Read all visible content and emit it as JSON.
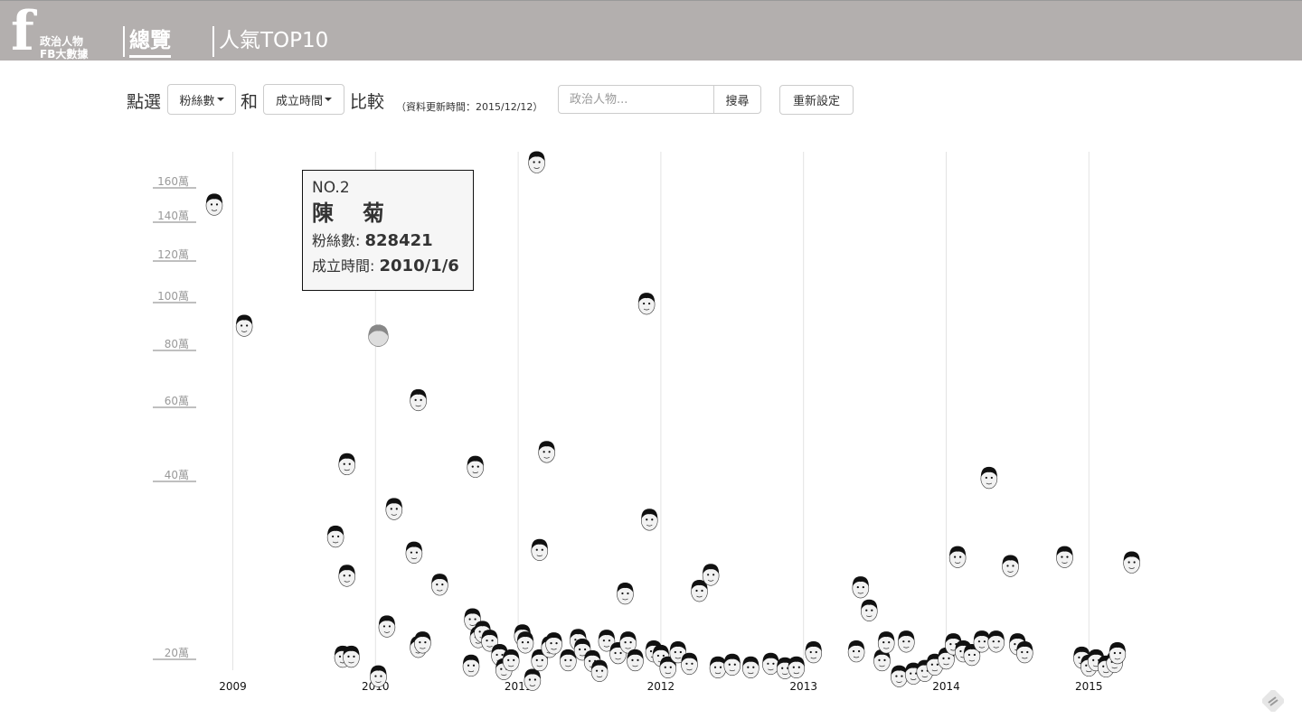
{
  "header": {
    "logo_letter": "f",
    "logo_line1": "政治人物",
    "logo_line2": "FB大數據",
    "nav": [
      {
        "label": "總覽",
        "active": true
      },
      {
        "label": "人氣TOP10",
        "active": false
      }
    ]
  },
  "controls": {
    "prefix": "點選",
    "metric_select": "粉絲數",
    "connector": "和",
    "time_select": "成立時間",
    "suffix": "比較",
    "update_note": "（資料更新時間：2015/12/12）",
    "search_placeholder": "政治人物...",
    "search_button": "搜尋",
    "reset_button": "重新設定"
  },
  "tooltip": {
    "rank": "NO.2",
    "name": "陳　菊",
    "fans_label": "粉絲數:",
    "fans_value": "828421",
    "date_label": "成立時間:",
    "date_value": "2010/1/6"
  },
  "chart_data": {
    "type": "scatter",
    "xlabel": "",
    "ylabel": "",
    "x_ticks": [
      "2009",
      "2010",
      "2011",
      "2012",
      "2013",
      "2014",
      "2015"
    ],
    "y_ticks": [
      "20萬",
      "40萬",
      "60萬",
      "80萬",
      "100萬",
      "120萬",
      "140萬",
      "160萬"
    ],
    "x_range": [
      2008.6,
      2015.5
    ],
    "grid": "vertical",
    "highlighted_point": {
      "x": 2010.02,
      "y": 828421
    },
    "points": [
      [
        2008.87,
        1456000
      ],
      [
        2009.08,
        870000
      ],
      [
        2009.72,
        329000
      ],
      [
        2009.8,
        425000
      ],
      [
        2009.8,
        285000
      ],
      [
        2009.77,
        194000
      ],
      [
        2009.83,
        194000
      ],
      [
        2010.02,
        172000
      ],
      [
        2010.02,
        828421
      ],
      [
        2010.08,
        228000
      ],
      [
        2010.13,
        360000
      ],
      [
        2010.27,
        311000
      ],
      [
        2010.3,
        598000
      ],
      [
        2010.3,
        205000
      ],
      [
        2010.33,
        210000
      ],
      [
        2010.45,
        275000
      ],
      [
        2010.68,
        236000
      ],
      [
        2010.7,
        418000
      ],
      [
        2010.72,
        216000
      ],
      [
        2010.75,
        222000
      ],
      [
        2010.67,
        184000
      ],
      [
        2010.8,
        212000
      ],
      [
        2010.87,
        196000
      ],
      [
        2010.9,
        180000
      ],
      [
        2010.95,
        190000
      ],
      [
        2011.03,
        218000
      ],
      [
        2011.05,
        210000
      ],
      [
        2011.13,
        1700000
      ],
      [
        2011.15,
        314000
      ],
      [
        2011.2,
        458000
      ],
      [
        2011.1,
        168000
      ],
      [
        2011.15,
        190000
      ],
      [
        2011.22,
        205000
      ],
      [
        2011.25,
        209000
      ],
      [
        2011.35,
        190000
      ],
      [
        2011.42,
        213000
      ],
      [
        2011.45,
        202000
      ],
      [
        2011.52,
        189000
      ],
      [
        2011.57,
        178000
      ],
      [
        2011.62,
        212000
      ],
      [
        2011.7,
        198000
      ],
      [
        2011.75,
        265000
      ],
      [
        2011.77,
        210000
      ],
      [
        2011.82,
        190000
      ],
      [
        2011.9,
        962000
      ],
      [
        2011.92,
        348000
      ],
      [
        2011.95,
        200000
      ],
      [
        2012.0,
        195000
      ],
      [
        2012.05,
        182000
      ],
      [
        2012.12,
        199000
      ],
      [
        2012.2,
        186000
      ],
      [
        2012.27,
        268000
      ],
      [
        2012.35,
        286000
      ],
      [
        2012.4,
        182000
      ],
      [
        2012.5,
        185000
      ],
      [
        2012.63,
        182000
      ],
      [
        2012.77,
        186000
      ],
      [
        2012.87,
        181000
      ],
      [
        2012.95,
        182000
      ],
      [
        2013.07,
        199000
      ],
      [
        2013.37,
        200000
      ],
      [
        2013.4,
        272000
      ],
      [
        2013.46,
        246000
      ],
      [
        2013.55,
        190000
      ],
      [
        2013.58,
        210000
      ],
      [
        2013.67,
        172000
      ],
      [
        2013.72,
        211000
      ],
      [
        2013.77,
        175000
      ],
      [
        2013.85,
        178000
      ],
      [
        2013.92,
        185000
      ],
      [
        2014.0,
        192000
      ],
      [
        2014.05,
        208000
      ],
      [
        2014.08,
        306000
      ],
      [
        2014.12,
        200000
      ],
      [
        2014.18,
        196000
      ],
      [
        2014.25,
        211000
      ],
      [
        2014.3,
        395000
      ],
      [
        2014.35,
        211000
      ],
      [
        2014.45,
        296000
      ],
      [
        2014.5,
        208000
      ],
      [
        2014.55,
        199000
      ],
      [
        2014.83,
        306000
      ],
      [
        2014.95,
        193000
      ],
      [
        2015.0,
        184000
      ],
      [
        2015.05,
        190000
      ],
      [
        2015.12,
        183000
      ],
      [
        2015.18,
        188000
      ],
      [
        2015.2,
        198000
      ],
      [
        2015.3,
        300000
      ]
    ]
  }
}
